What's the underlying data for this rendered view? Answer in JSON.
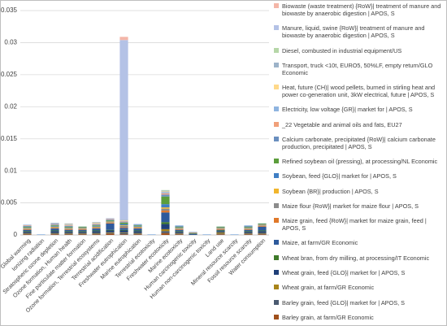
{
  "chart_data": {
    "type": "stacked_bar",
    "categories": [
      "Global warming",
      "Ionizing radiation",
      "Stratospheric ozone depletion",
      "Ozone formation, Human health",
      "Fine particulate matter formation",
      "Ozone formation, Terrestrial ecosystems",
      "Terrestrial acidification",
      "Freshwater eutrophication",
      "Marine eutrophication",
      "Terrestrial ecotoxicity",
      "Freshwater ecotoxicity",
      "Marine ecotoxicity",
      "Human carcinogenic toxicity",
      "Human non-carcinogenic toxicity",
      "Land use",
      "Mineral resource scarcity",
      "Fossil resource scarcity",
      "Water consumption"
    ],
    "ylim": [
      0,
      0.035
    ],
    "yticks": [
      0,
      0.005,
      0.01,
      0.015,
      0.02,
      0.025,
      0.03,
      0.035
    ],
    "grid": true,
    "series": [
      {
        "name": "Biowaste (waste treatment) {RoW}| treatment of manure and biowaste by anaerobic digestion | APOS, S",
        "color": "#f4b6a8",
        "values": [
          0,
          0,
          0,
          0,
          0,
          0,
          0,
          0.0005,
          0,
          0,
          0,
          0,
          0,
          0,
          0,
          0,
          0,
          0
        ]
      },
      {
        "name": "Manure, liquid, swine {RoW}| treatment of manure and biowaste by anaerobic digestion | APOS, S",
        "color": "#b4c2e6",
        "values": [
          0,
          0,
          0,
          0,
          0,
          0,
          0,
          0.028,
          0,
          0,
          0,
          0,
          0,
          0,
          0,
          0,
          0,
          0
        ]
      },
      {
        "name": "Diesel, combusted in industrial equipment/US",
        "color": "#b6d7a8",
        "values": [
          0,
          0,
          0,
          0,
          0,
          0,
          0,
          0,
          0,
          0,
          0.0001,
          0,
          0,
          0,
          0,
          0,
          0,
          0
        ]
      },
      {
        "name": "Transport, truck <10t, EURO5, 50%LF, empty return/GLO Economic",
        "color": "#9db3c9",
        "values": [
          0,
          0,
          0.0001,
          0.0001,
          0,
          0.0001,
          0,
          0.0001,
          0,
          0,
          0.0001,
          0,
          0,
          0,
          0,
          0,
          0,
          0
        ]
      },
      {
        "name": "Heat, future (CH)| wood pellets, burned in stirling heat and power co-generation unit, 3kW electrical, future | APOS, S",
        "color": "#ffd98a",
        "values": [
          0,
          0,
          0,
          0.0001,
          0,
          0.0001,
          0,
          0.0001,
          0,
          0,
          0.0001,
          0,
          0,
          0,
          0,
          0,
          0,
          0
        ]
      },
      {
        "name": "Electricity, low voltage {GR}| market for | APOS, S",
        "color": "#8fb4e0",
        "values": [
          0.0001,
          0.0001,
          0.0001,
          0.0001,
          0,
          0.0001,
          0.0001,
          0.0001,
          0.0001,
          0.0001,
          0.0002,
          0.0001,
          0.0001,
          0.0001,
          0,
          0.0001,
          0.0001,
          0
        ]
      },
      {
        "name": "_22 Vegetable and animal oils and fats, EU27",
        "color": "#f0a07a",
        "values": [
          0.0001,
          0,
          0.0001,
          0.0001,
          0,
          0.0001,
          0.0001,
          0.0001,
          0,
          0,
          0.0002,
          0,
          0.0001,
          0,
          0,
          0,
          0,
          0
        ]
      },
      {
        "name": "Calcium carbonate, precipitated {RoW}| calcium carbonate production, precipitated | APOS, S",
        "color": "#6a8fbf",
        "values": [
          0.0001,
          0,
          0.0001,
          0.0001,
          0,
          0.0001,
          0.0001,
          0.0001,
          0.0001,
          0,
          0.0003,
          0.0001,
          0,
          0,
          0,
          0,
          0.0001,
          0
        ]
      },
      {
        "name": "Refined soybean oil (pressing), at processing/NL Economic",
        "color": "#5c9e3c",
        "values": [
          0.0001,
          0,
          0.0001,
          0.0001,
          0.0001,
          0.0001,
          0.0001,
          0.0002,
          0.0001,
          0,
          0.0012,
          0.0001,
          0.0001,
          0,
          0.0001,
          0,
          0.0001,
          0.0001
        ]
      },
      {
        "name": "Soybean, feed {GLO}| market for | APOS, S",
        "color": "#3f7fc4",
        "values": [
          0.0001,
          0,
          0.0001,
          0.0001,
          0.0001,
          0.0001,
          0.0001,
          0.0002,
          0.0001,
          0,
          0.0005,
          0.0001,
          0,
          0,
          0.0001,
          0,
          0.0001,
          0.0001
        ]
      },
      {
        "name": "Soybean {BR}| production | APOS, S",
        "color": "#f1b52c",
        "values": [
          0.0001,
          0,
          0.0001,
          0.0001,
          0.0001,
          0.0001,
          0.0001,
          0.0001,
          0.0001,
          0,
          0.0002,
          0.0001,
          0,
          0,
          0.0001,
          0,
          0.0001,
          0.0001
        ]
      },
      {
        "name": "Maize flour {RoW}| market for maize flour | APOS, S",
        "color": "#8c8c8c",
        "values": [
          0.0001,
          0,
          0.0001,
          0.0001,
          0.0001,
          0.0001,
          0.0001,
          0.0002,
          0.0001,
          0,
          0.0003,
          0.0001,
          0,
          0,
          0.0001,
          0,
          0.0001,
          0.0001
        ]
      },
      {
        "name": "Maize grain, feed {RoW}| market for maize grain, feed | APOS, S",
        "color": "#e0782a",
        "values": [
          0.0001,
          0,
          0.0001,
          0.0001,
          0.0001,
          0.0001,
          0.0001,
          0.0001,
          0.0001,
          0,
          0.0003,
          0.0001,
          0,
          0,
          0.0001,
          0,
          0.0001,
          0.0001
        ]
      },
      {
        "name": "Maize, at farm/GR Economic",
        "color": "#2e5a9c",
        "values": [
          0.0002,
          0,
          0.0003,
          0.0002,
          0.0002,
          0.0003,
          0.001,
          0.0003,
          0.0003,
          0,
          0.0015,
          0.0002,
          0.0001,
          0,
          0.0001,
          0,
          0.0002,
          0.0006
        ]
      },
      {
        "name": "Wheat bran, from dry milling, at processing/IT Economic",
        "color": "#3f7a2a",
        "values": [
          0.0001,
          0,
          0.0001,
          0.0001,
          0.0001,
          0.0001,
          0.0001,
          0.0001,
          0.0001,
          0,
          0.0003,
          0.0001,
          0,
          0,
          0.0001,
          0,
          0.0001,
          0.0001
        ]
      },
      {
        "name": "Wheat grain, feed {GLO}| market for | APOS, S",
        "color": "#1f3f78",
        "values": [
          0.0002,
          0,
          0.0003,
          0.0002,
          0.0002,
          0.0003,
          0.0003,
          0.0003,
          0.0003,
          0,
          0.0008,
          0.0002,
          0.0001,
          0,
          0.0002,
          0,
          0.0002,
          0.0003
        ]
      },
      {
        "name": "Wheat grain, at farm/GR Economic",
        "color": "#a8841a",
        "values": [
          0.0001,
          0,
          0.0001,
          0.0001,
          0.0001,
          0.0001,
          0.0001,
          0.0001,
          0.0001,
          0,
          0.0003,
          0.0001,
          0,
          0,
          0.0002,
          0,
          0.0001,
          0.0001
        ]
      },
      {
        "name": "Barley grain, feed {GLO}| market for | APOS, S",
        "color": "#4a5a70",
        "values": [
          0.0001,
          0,
          0.0001,
          0.0001,
          0.0001,
          0.0001,
          0.0001,
          0.0002,
          0.0001,
          0,
          0.0003,
          0.0001,
          0,
          0,
          0.0001,
          0,
          0.0001,
          0.0001
        ]
      },
      {
        "name": "Barley grain, at farm/GR Economic",
        "color": "#a0501c",
        "values": [
          0.0001,
          0,
          0.0001,
          0.0001,
          0.0001,
          0.0001,
          0.0002,
          0.0001,
          0.0001,
          0,
          0.0003,
          0.0001,
          0,
          0,
          0.0001,
          0,
          0.0001,
          0.0001
        ]
      }
    ]
  }
}
